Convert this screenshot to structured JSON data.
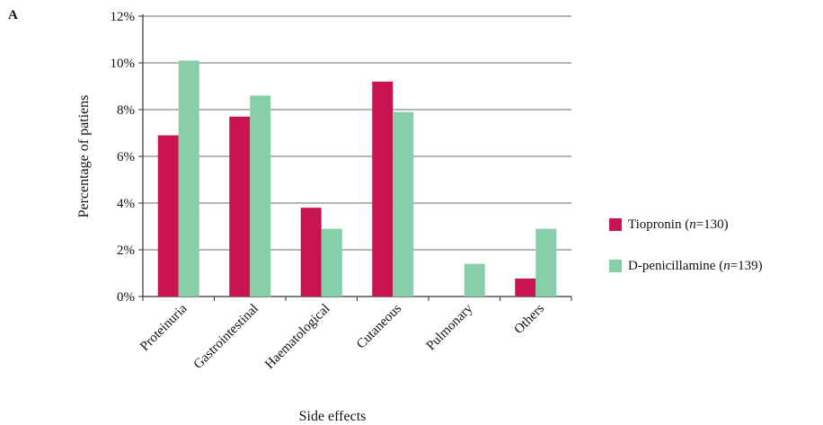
{
  "panel_label": "A",
  "legend": [
    {
      "prefix": "Tiopronin (",
      "italic": "n",
      "suffix": "=130)",
      "color": "#c8144e"
    },
    {
      "prefix": "D-penicillamine (",
      "italic": "n",
      "suffix": "=139)",
      "color": "#86cfa9"
    }
  ],
  "chart_data": {
    "type": "bar",
    "xlabel": "Side effects",
    "ylabel": "Percentage of patiens",
    "ylim": [
      0,
      12
    ],
    "yticks": [
      "0%",
      "2%",
      "4%",
      "6%",
      "8%",
      "10%",
      "12%"
    ],
    "grid": true,
    "legend_position": "right",
    "categories": [
      "Proteinuria",
      "Gastrointestinal",
      "Haematological",
      "Cutaneous",
      "Pulmonary",
      "Others"
    ],
    "series": [
      {
        "name": "Tiopronin (n=130)",
        "color": "#c8144e",
        "values": [
          6.9,
          7.7,
          3.8,
          9.2,
          0,
          0.77
        ]
      },
      {
        "name": "D-penicillamine (n=139)",
        "color": "#86cfa9",
        "values": [
          10.1,
          8.6,
          2.9,
          7.9,
          1.4,
          2.9
        ]
      }
    ]
  }
}
